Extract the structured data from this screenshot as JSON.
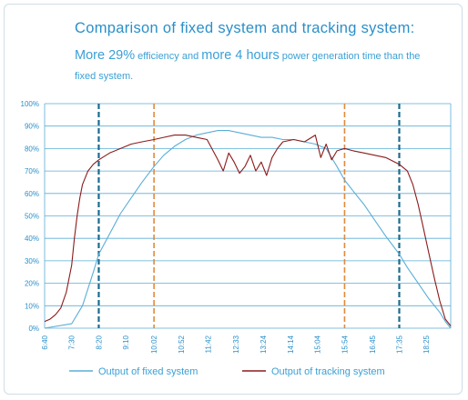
{
  "header": {
    "title": "Comparison of fixed system and tracking system:",
    "subtitle_parts": [
      {
        "text": "More 29%",
        "big": true
      },
      {
        "text": " efficiency and ",
        "big": false
      },
      {
        "text": "more 4 hours",
        "big": true
      },
      {
        "text": " power generation time than the fixed system.",
        "big": false
      }
    ]
  },
  "colors": {
    "fixed": "#5aaed6",
    "tracking": "#8b1a1a",
    "grid": "#5aaed6",
    "vline_dark": "#1b6b8f",
    "vline_orange": "#e08a3c",
    "axis_text": "#2a8fc9"
  },
  "chart_data": {
    "type": "line",
    "title": "",
    "xlabel": "",
    "ylabel": "",
    "ylim": [
      0,
      100
    ],
    "y_ticks": [
      "0%",
      "10%",
      "20%",
      "30%",
      "40%",
      "50%",
      "60%",
      "70%",
      "80%",
      "90%",
      "100%"
    ],
    "x_ticks": [
      "6:40",
      "7:30",
      "8:20",
      "9:10",
      "10:02",
      "10:52",
      "11:42",
      "12:33",
      "13:24",
      "14:14",
      "15:04",
      "15:54",
      "16:45",
      "17:35",
      "18:25"
    ],
    "x_range_minutes": [
      400,
      1150
    ],
    "grid": true,
    "legend": "bottom",
    "reference_lines": [
      {
        "time": "8:20",
        "style": "dark-dashed"
      },
      {
        "time": "10:02",
        "style": "orange-dashed"
      },
      {
        "time": "15:54",
        "style": "orange-dashed"
      },
      {
        "time": "17:35",
        "style": "dark-dashed"
      }
    ],
    "series": [
      {
        "name": "Output of fixed system",
        "x": [
          "6:40",
          "7:30",
          "7:50",
          "8:10",
          "8:20",
          "8:40",
          "9:00",
          "9:20",
          "9:40",
          "10:02",
          "10:20",
          "10:40",
          "11:00",
          "11:20",
          "11:40",
          "12:00",
          "12:20",
          "12:40",
          "13:00",
          "13:20",
          "13:40",
          "14:00",
          "14:20",
          "14:40",
          "15:00",
          "15:20",
          "15:40",
          "15:54",
          "16:10",
          "16:30",
          "16:50",
          "17:10",
          "17:35",
          "17:50",
          "18:10",
          "18:30",
          "18:50",
          "19:00",
          "19:10"
        ],
        "y": [
          0,
          2,
          10,
          25,
          33,
          42,
          51,
          58,
          65,
          72,
          77,
          81,
          84,
          86,
          87,
          88,
          88,
          87,
          86,
          85,
          85,
          84,
          84,
          83,
          82,
          80,
          72,
          66,
          61,
          55,
          48,
          41,
          33,
          27,
          20,
          13,
          7,
          3,
          0
        ]
      },
      {
        "name": "Output of tracking system",
        "x": [
          "6:40",
          "6:50",
          "7:00",
          "7:10",
          "7:20",
          "7:30",
          "7:35",
          "7:40",
          "7:45",
          "7:50",
          "8:00",
          "8:10",
          "8:20",
          "8:40",
          "9:00",
          "9:20",
          "9:40",
          "10:02",
          "10:20",
          "10:40",
          "11:00",
          "11:20",
          "11:40",
          "12:00",
          "12:10",
          "12:20",
          "12:30",
          "12:40",
          "12:50",
          "13:00",
          "13:10",
          "13:20",
          "13:30",
          "13:40",
          "13:50",
          "14:00",
          "14:20",
          "14:40",
          "15:00",
          "15:10",
          "15:20",
          "15:30",
          "15:40",
          "15:54",
          "16:10",
          "16:30",
          "16:50",
          "17:10",
          "17:35",
          "17:50",
          "18:00",
          "18:10",
          "18:20",
          "18:30",
          "18:40",
          "18:50",
          "19:00",
          "19:10"
        ],
        "y": [
          3,
          4,
          6,
          9,
          16,
          28,
          40,
          50,
          58,
          64,
          70,
          73,
          75,
          78,
          80,
          82,
          83,
          84,
          85,
          86,
          86,
          85,
          84,
          75,
          70,
          78,
          74,
          69,
          72,
          77,
          70,
          74,
          68,
          76,
          80,
          83,
          84,
          83,
          86,
          76,
          82,
          75,
          79,
          80,
          79,
          78,
          77,
          76,
          73,
          70,
          64,
          55,
          44,
          33,
          22,
          12,
          4,
          1
        ]
      }
    ]
  },
  "legend": {
    "fixed_label": "Output of fixed system",
    "tracking_label": "Output of tracking system"
  }
}
